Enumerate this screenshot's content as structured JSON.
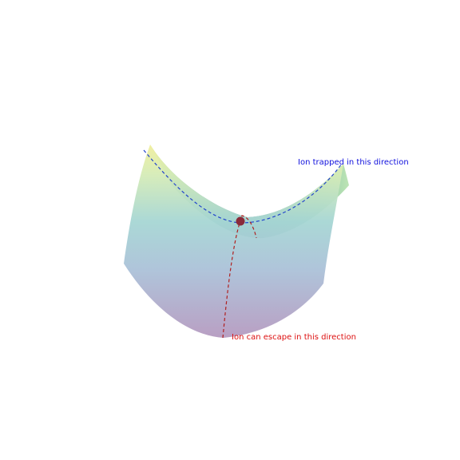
{
  "chart_data": {
    "type": "surface",
    "surface": "saddle",
    "colormap": [
      "#b59ac0",
      "#a6cfdb",
      "#ece895",
      "#79b9a8"
    ],
    "annotations": [
      {
        "text": "Ion trapped in this direction",
        "color": "#1010dd"
      },
      {
        "text": "Ion can escape in this direction",
        "color": "#dd1010"
      }
    ],
    "curves": [
      {
        "direction": "trapped",
        "color": "#2244cc",
        "style": "dashed"
      },
      {
        "direction": "escape",
        "color": "#b02020",
        "style": "dashed"
      }
    ],
    "saddle_point": {
      "color": "#8a2a3a"
    },
    "grid": false,
    "axes_visible": false
  }
}
